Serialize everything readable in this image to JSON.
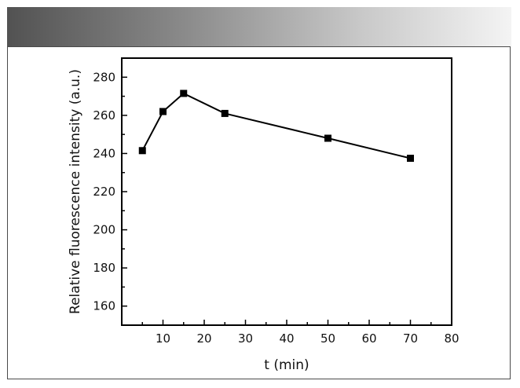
{
  "chart_data": {
    "type": "line",
    "title": "",
    "xlabel": "t (min)",
    "ylabel": "Relative fluorescence intensity (a.u.)",
    "xlim": [
      0,
      80
    ],
    "ylim": [
      150,
      290
    ],
    "xticks": [
      10,
      20,
      30,
      40,
      50,
      60,
      70,
      80
    ],
    "yticks": [
      160,
      180,
      200,
      220,
      240,
      260,
      280
    ],
    "grid": false,
    "marker": "square",
    "line_color": "#000000",
    "series": [
      {
        "x": [
          5,
          10,
          15,
          25,
          50,
          70
        ],
        "y": [
          241.5,
          262,
          271.5,
          261,
          248,
          237.5
        ]
      }
    ]
  }
}
